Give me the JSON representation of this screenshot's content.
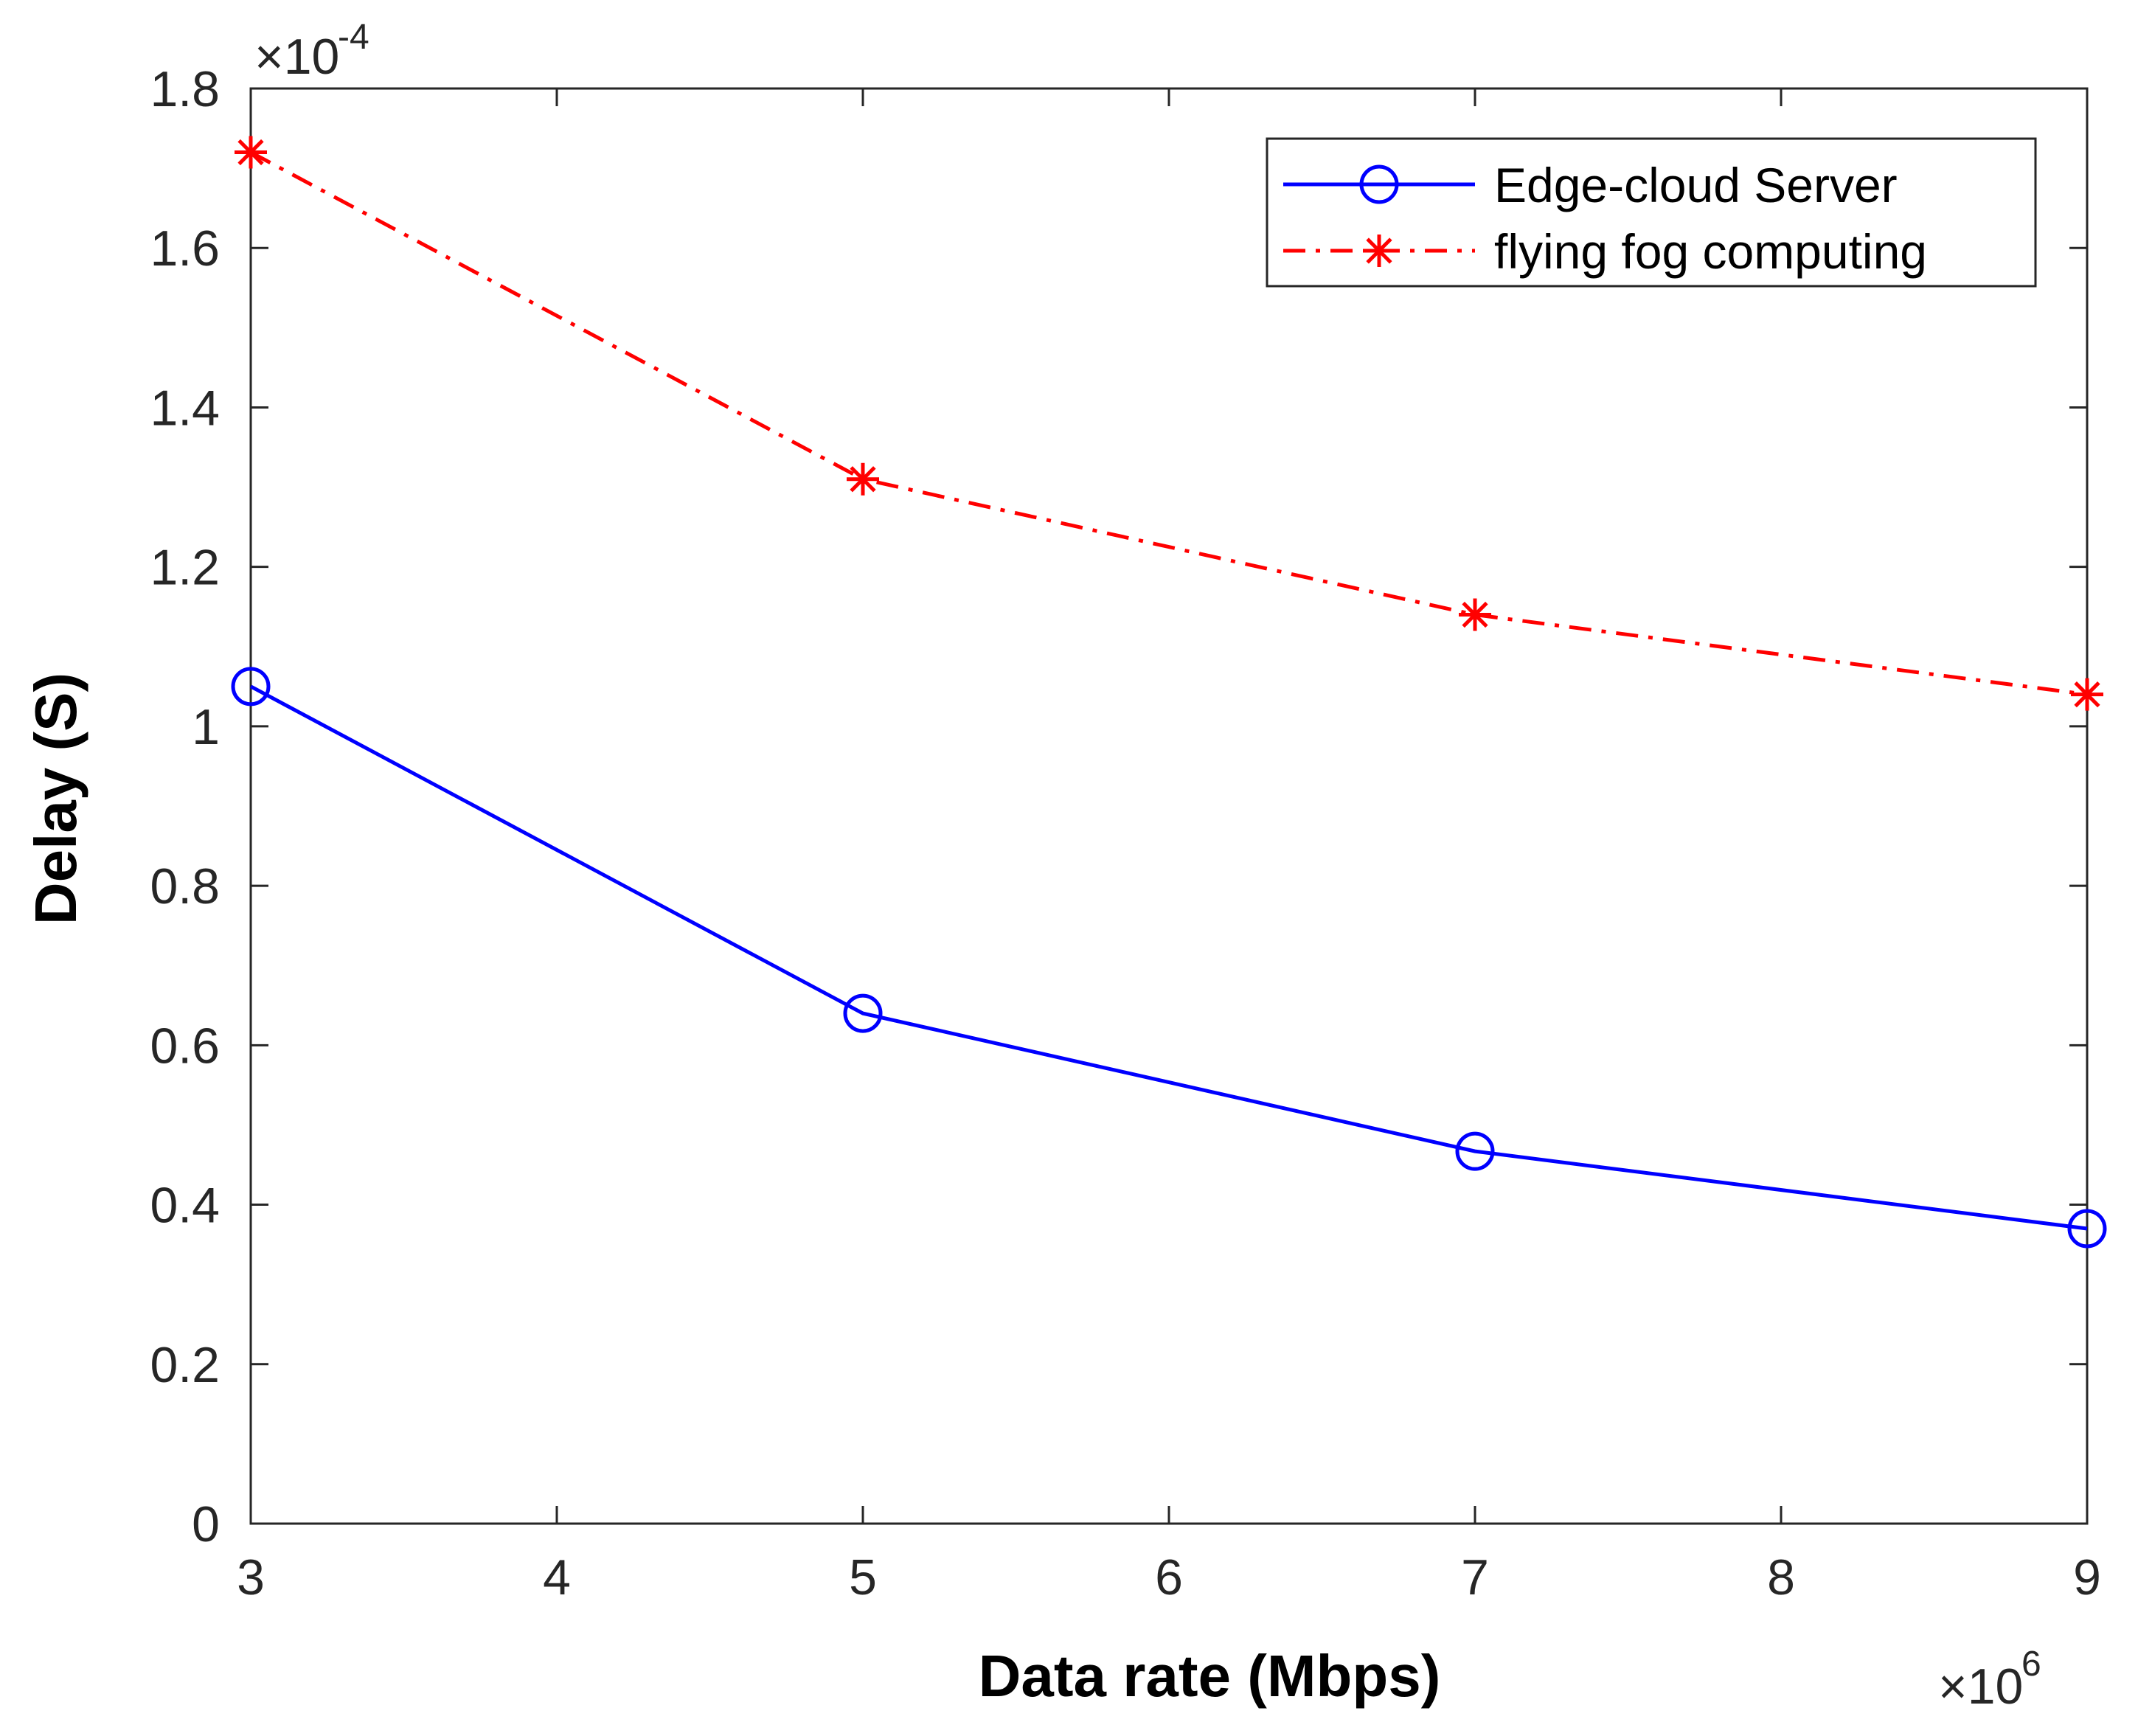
{
  "chart_data": {
    "type": "line",
    "title": "",
    "xlabel": "Data rate (Mbps)",
    "ylabel": "Delay (S)",
    "x_multiplier": {
      "base": "×10",
      "exponent": "6"
    },
    "y_multiplier": {
      "base": "×10",
      "exponent": "-4"
    },
    "x": [
      3,
      5,
      7,
      9
    ],
    "xlim": [
      3,
      9
    ],
    "ylim": [
      0,
      1.8
    ],
    "x_ticks": [
      3,
      4,
      5,
      6,
      7,
      8,
      9
    ],
    "x_tick_labels": [
      "3",
      "4",
      "5",
      "6",
      "7",
      "8",
      "9"
    ],
    "y_ticks": [
      0,
      0.2,
      0.4,
      0.6,
      0.8,
      1.0,
      1.2,
      1.4,
      1.6,
      1.8
    ],
    "y_tick_labels": [
      "0",
      "0.2",
      "0.4",
      "0.6",
      "0.8",
      "1",
      "1.2",
      "1.4",
      "1.6",
      "1.8"
    ],
    "grid": false,
    "legend_position": "top-right",
    "series": [
      {
        "name": "Edge-cloud Server",
        "values": [
          1.05,
          0.64,
          0.467,
          0.37
        ],
        "color": "#0000ff",
        "line_style": "solid",
        "marker": "circle"
      },
      {
        "name": "flying fog computing",
        "values": [
          1.72,
          1.31,
          1.14,
          1.04
        ],
        "color": "#ff0000",
        "line_style": "dash-dot",
        "marker": "asterisk"
      }
    ]
  }
}
